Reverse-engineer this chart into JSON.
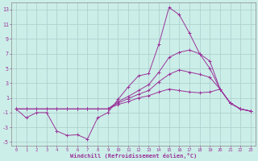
{
  "background_color": "#cceee8",
  "grid_color": "#aacccc",
  "line_color": "#993399",
  "xlabel": "Windchill (Refroidissement éolien,°C)",
  "ylim": [
    -5.5,
    14.0
  ],
  "xlim": [
    -0.5,
    23.5
  ],
  "yticks": [
    -5,
    -3,
    -1,
    1,
    3,
    5,
    7,
    9,
    11,
    13
  ],
  "xticks": [
    0,
    1,
    2,
    3,
    4,
    5,
    6,
    7,
    8,
    9,
    10,
    11,
    12,
    13,
    14,
    15,
    16,
    17,
    18,
    19,
    20,
    21,
    22,
    23
  ],
  "x": [
    0,
    1,
    2,
    3,
    4,
    5,
    6,
    7,
    8,
    9,
    10,
    11,
    12,
    13,
    14,
    15,
    16,
    17,
    18,
    19,
    20,
    21,
    22,
    23
  ],
  "series1": [
    -0.5,
    -1.7,
    -1.0,
    -1.0,
    -3.5,
    -4.1,
    -4.0,
    -4.6,
    -1.7,
    -1.0,
    0.8,
    2.5,
    4.0,
    4.3,
    8.3,
    13.3,
    12.3,
    9.8,
    7.0,
    5.0,
    2.2,
    0.3,
    -0.5,
    -0.8
  ],
  "series2": [
    -0.5,
    -0.5,
    -0.5,
    -0.5,
    -0.5,
    -0.5,
    -0.5,
    -0.5,
    -0.5,
    -0.5,
    0.5,
    1.2,
    2.0,
    2.8,
    4.5,
    6.5,
    7.2,
    7.5,
    7.0,
    6.0,
    2.2,
    0.3,
    -0.5,
    -0.8
  ],
  "series3": [
    -0.5,
    -0.5,
    -0.5,
    -0.5,
    -0.5,
    -0.5,
    -0.5,
    -0.5,
    -0.5,
    -0.5,
    0.3,
    0.9,
    1.5,
    2.0,
    3.2,
    4.2,
    4.8,
    4.5,
    4.2,
    3.8,
    2.2,
    0.3,
    -0.5,
    -0.8
  ],
  "series4": [
    -0.5,
    -0.5,
    -0.5,
    -0.5,
    -0.5,
    -0.5,
    -0.5,
    -0.5,
    -0.5,
    -0.5,
    0.1,
    0.5,
    1.0,
    1.3,
    1.8,
    2.2,
    2.0,
    1.8,
    1.7,
    1.8,
    2.2,
    0.3,
    -0.5,
    -0.8
  ]
}
